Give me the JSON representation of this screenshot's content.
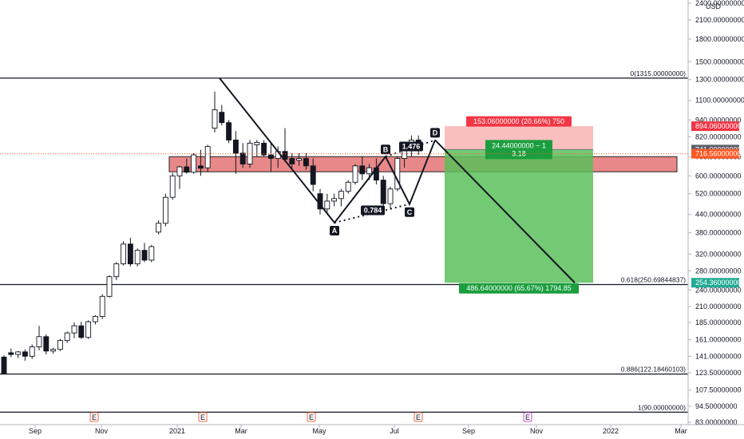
{
  "chart_data": {
    "type": "candlestick",
    "currency": "USD",
    "y_scale": "log",
    "ylim": [
      80,
      2500
    ],
    "y_ticks": [
      "2400.00000000",
      "2100.00000000",
      "1800.00000000",
      "1500.00000000",
      "1300.00000000",
      "1100.00000000",
      "940.00000000",
      "820.00000000",
      "700.00000000",
      "600.00000000",
      "520.00000000",
      "440.00000000",
      "380.00000000",
      "320.00000000",
      "280.00000000",
      "240.00000000",
      "210.00000000",
      "185.00000000",
      "161.00000000",
      "141.00000000",
      "123.50000000",
      "107.50000000",
      "94.50000000",
      "83.00000000"
    ],
    "x_ticks": [
      "Sep",
      "Nov",
      "2021",
      "Mar",
      "May",
      "Jul",
      "Sep",
      "Nov",
      "2022",
      "Mar"
    ],
    "candles": [
      {
        "o": 140,
        "h": 142,
        "l": 122,
        "c": 123
      },
      {
        "o": 145,
        "h": 150,
        "l": 140,
        "c": 143
      },
      {
        "o": 143,
        "h": 147,
        "l": 139,
        "c": 146
      },
      {
        "o": 146,
        "h": 149,
        "l": 136,
        "c": 141
      },
      {
        "o": 141,
        "h": 155,
        "l": 138,
        "c": 152
      },
      {
        "o": 152,
        "h": 180,
        "l": 148,
        "c": 165
      },
      {
        "o": 165,
        "h": 168,
        "l": 143,
        "c": 147
      },
      {
        "o": 147,
        "h": 151,
        "l": 144,
        "c": 149
      },
      {
        "o": 149,
        "h": 162,
        "l": 147,
        "c": 160
      },
      {
        "o": 160,
        "h": 172,
        "l": 157,
        "c": 170
      },
      {
        "o": 170,
        "h": 185,
        "l": 163,
        "c": 180
      },
      {
        "o": 180,
        "h": 186,
        "l": 162,
        "c": 164
      },
      {
        "o": 164,
        "h": 188,
        "l": 162,
        "c": 186
      },
      {
        "o": 186,
        "h": 196,
        "l": 182,
        "c": 194
      },
      {
        "o": 194,
        "h": 232,
        "l": 190,
        "c": 228
      },
      {
        "o": 228,
        "h": 270,
        "l": 226,
        "c": 267
      },
      {
        "o": 267,
        "h": 300,
        "l": 260,
        "c": 296
      },
      {
        "o": 296,
        "h": 355,
        "l": 292,
        "c": 347
      },
      {
        "o": 347,
        "h": 365,
        "l": 290,
        "c": 296
      },
      {
        "o": 296,
        "h": 335,
        "l": 290,
        "c": 330
      },
      {
        "o": 330,
        "h": 350,
        "l": 300,
        "c": 305
      },
      {
        "o": 305,
        "h": 345,
        "l": 300,
        "c": 340
      },
      {
        "o": 382,
        "h": 420,
        "l": 375,
        "c": 410
      },
      {
        "o": 410,
        "h": 520,
        "l": 400,
        "c": 505
      },
      {
        "o": 505,
        "h": 615,
        "l": 495,
        "c": 600
      },
      {
        "o": 600,
        "h": 650,
        "l": 540,
        "c": 645
      },
      {
        "o": 645,
        "h": 690,
        "l": 610,
        "c": 618
      },
      {
        "o": 618,
        "h": 720,
        "l": 610,
        "c": 710
      },
      {
        "o": 650,
        "h": 740,
        "l": 600,
        "c": 638
      },
      {
        "o": 640,
        "h": 770,
        "l": 620,
        "c": 760
      },
      {
        "o": 880,
        "h": 1180,
        "l": 850,
        "c": 1020
      },
      {
        "o": 1000,
        "h": 1060,
        "l": 900,
        "c": 920
      },
      {
        "o": 920,
        "h": 940,
        "l": 780,
        "c": 800
      },
      {
        "o": 800,
        "h": 860,
        "l": 610,
        "c": 720
      },
      {
        "o": 720,
        "h": 780,
        "l": 640,
        "c": 660
      },
      {
        "o": 660,
        "h": 800,
        "l": 640,
        "c": 780
      },
      {
        "o": 770,
        "h": 800,
        "l": 700,
        "c": 785
      },
      {
        "o": 780,
        "h": 800,
        "l": 700,
        "c": 710
      },
      {
        "o": 710,
        "h": 780,
        "l": 620,
        "c": 690
      },
      {
        "o": 690,
        "h": 760,
        "l": 640,
        "c": 730
      },
      {
        "o": 730,
        "h": 880,
        "l": 670,
        "c": 685
      },
      {
        "o": 690,
        "h": 720,
        "l": 640,
        "c": 660
      },
      {
        "o": 680,
        "h": 720,
        "l": 650,
        "c": 690
      },
      {
        "o": 690,
        "h": 720,
        "l": 630,
        "c": 650
      },
      {
        "o": 650,
        "h": 690,
        "l": 530,
        "c": 560
      },
      {
        "o": 520,
        "h": 540,
        "l": 440,
        "c": 460
      },
      {
        "o": 460,
        "h": 520,
        "l": 440,
        "c": 490
      },
      {
        "o": 490,
        "h": 520,
        "l": 470,
        "c": 500
      },
      {
        "o": 500,
        "h": 540,
        "l": 470,
        "c": 530
      },
      {
        "o": 530,
        "h": 580,
        "l": 520,
        "c": 570
      },
      {
        "o": 570,
        "h": 660,
        "l": 560,
        "c": 650
      },
      {
        "o": 650,
        "h": 700,
        "l": 580,
        "c": 610
      },
      {
        "o": 610,
        "h": 660,
        "l": 580,
        "c": 640
      },
      {
        "o": 640,
        "h": 690,
        "l": 560,
        "c": 580
      },
      {
        "o": 580,
        "h": 600,
        "l": 470,
        "c": 480
      },
      {
        "o": 480,
        "h": 550,
        "l": 460,
        "c": 540
      },
      {
        "o": 540,
        "h": 700,
        "l": 530,
        "c": 690
      },
      {
        "o": 690,
        "h": 760,
        "l": 640,
        "c": 740
      },
      {
        "o": 740,
        "h": 830,
        "l": 700,
        "c": 800
      },
      {
        "o": 800,
        "h": 830,
        "l": 710,
        "c": 740
      }
    ],
    "resistance_zone": {
      "low": 620,
      "high": 700
    },
    "horizontal_levels": [
      {
        "price": 1315,
        "label": "0(1315.00000000)"
      },
      {
        "price": 250.69844837,
        "label": "0.618(250.69844837)"
      },
      {
        "price": 122.18460103,
        "label": "0.886(122.18460103)"
      },
      {
        "price": 90,
        "label": "1(90.00000000)"
      }
    ],
    "harmonic_points": [
      {
        "name": "A",
        "price": 412
      },
      {
        "name": "B",
        "price": 700
      },
      {
        "name": "C",
        "price": 478
      },
      {
        "name": "D",
        "price": 800
      }
    ],
    "harmonic_ratios": [
      {
        "text": "0.784"
      },
      {
        "text": "1.476"
      }
    ],
    "projection_target": 254.36,
    "position": {
      "entry": 741.0,
      "stop": 894.06,
      "target": 254.36,
      "stop_label": "153.06000000 (20.66%) 750",
      "target_label": "486.64000000 (65.67%) 1794.85",
      "rr_label_1": "24.44000000 ~ 1",
      "rr_label_2": "3.18"
    },
    "price_tags": [
      {
        "price": 894.06,
        "text": "894.06000000",
        "color": "#f23645"
      },
      {
        "price": 741.0,
        "text": "741.00000000",
        "color": "#5d606b"
      },
      {
        "price": 716.56,
        "text": "716.56000000",
        "color": "#ff5722"
      },
      {
        "price": 254.36,
        "text": "254.36000000",
        "color": "#22ab94"
      }
    ],
    "event_markers": [
      "E",
      "E",
      "E",
      "E",
      "E"
    ],
    "colors": {
      "up": "#ffffff",
      "down": "#131722",
      "zone": "#e57373",
      "loss": "#f7a9a9",
      "profit": "#5cbf5c",
      "accent_green": "#1b9e3e"
    }
  }
}
